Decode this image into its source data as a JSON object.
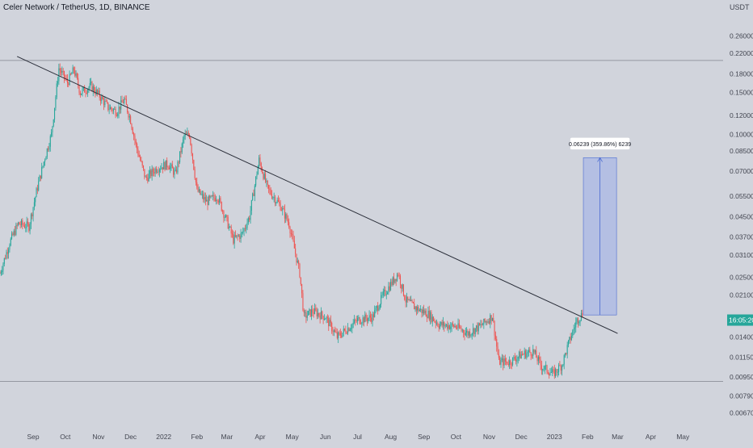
{
  "header": {
    "title": "Celer Network / TetherUS, 1D, BINANCE",
    "currency": "USDT"
  },
  "colors": {
    "background": "#d1d4dc",
    "up": "#26a69a",
    "down": "#ef5350",
    "trendline": "#2a2e39",
    "measure_fill": "#aab8e6",
    "measure_stroke": "#4a6ad0",
    "price_badge": "#26a69a",
    "hline": "#9598a1"
  },
  "chart_data": {
    "type": "candlestick",
    "symbol": "CELRUSDT",
    "interval": "1D",
    "exchange": "BINANCE",
    "x_range": [
      "2021-08-01",
      "2023-05-31"
    ],
    "y_scale": "log",
    "y_range": [
      0.0058,
      0.32
    ],
    "y_ticks": [
      0.26,
      0.22,
      0.18,
      0.15,
      0.12,
      0.1,
      0.085,
      0.07,
      0.055,
      0.045,
      0.037,
      0.031,
      0.025,
      0.021,
      0.014,
      0.0115,
      0.0095,
      0.0079,
      0.0067
    ],
    "y_tick_labels": [
      "0.26000",
      "0.22000",
      "0.18000",
      "0.15000",
      "0.12000",
      "0.10000",
      "0.08500",
      "0.07000",
      "0.05500",
      "0.04500",
      "0.03700",
      "0.03100",
      "0.02500",
      "0.02100",
      "0.01400",
      "0.01150",
      "0.00950",
      "0.00790",
      "0.00670"
    ],
    "x_ticks": [
      {
        "date": "2021-09-01",
        "label": "Sep"
      },
      {
        "date": "2021-10-01",
        "label": "Oct"
      },
      {
        "date": "2021-11-01",
        "label": "Nov"
      },
      {
        "date": "2021-12-01",
        "label": "Dec"
      },
      {
        "date": "2022-01-01",
        "label": "2022"
      },
      {
        "date": "2022-02-01",
        "label": "Feb"
      },
      {
        "date": "2022-03-01",
        "label": "Mar"
      },
      {
        "date": "2022-04-01",
        "label": "Apr"
      },
      {
        "date": "2022-05-01",
        "label": "May"
      },
      {
        "date": "2022-06-01",
        "label": "Jun"
      },
      {
        "date": "2022-07-01",
        "label": "Jul"
      },
      {
        "date": "2022-08-01",
        "label": "Aug"
      },
      {
        "date": "2022-09-01",
        "label": "Sep"
      },
      {
        "date": "2022-10-01",
        "label": "Oct"
      },
      {
        "date": "2022-11-01",
        "label": "Nov"
      },
      {
        "date": "2022-12-01",
        "label": "Dec"
      },
      {
        "date": "2023-01-01",
        "label": "2023"
      },
      {
        "date": "2023-02-01",
        "label": "Feb"
      },
      {
        "date": "2023-03-01",
        "label": "Mar"
      },
      {
        "date": "2023-04-01",
        "label": "Apr"
      },
      {
        "date": "2023-05-01",
        "label": "May"
      }
    ],
    "price_path": [
      [
        "2021-08-01",
        0.026
      ],
      [
        "2021-08-10",
        0.035
      ],
      [
        "2021-08-18",
        0.042
      ],
      [
        "2021-08-28",
        0.041
      ],
      [
        "2021-09-05",
        0.06
      ],
      [
        "2021-09-12",
        0.08
      ],
      [
        "2021-09-18",
        0.1
      ],
      [
        "2021-09-25",
        0.19
      ],
      [
        "2021-10-03",
        0.165
      ],
      [
        "2021-10-09",
        0.188
      ],
      [
        "2021-10-15",
        0.15
      ],
      [
        "2021-10-25",
        0.16
      ],
      [
        "2021-11-02",
        0.145
      ],
      [
        "2021-11-10",
        0.13
      ],
      [
        "2021-11-18",
        0.125
      ],
      [
        "2021-11-25",
        0.14
      ],
      [
        "2021-12-01",
        0.115
      ],
      [
        "2021-12-06",
        0.09
      ],
      [
        "2021-12-15",
        0.065
      ],
      [
        "2021-12-25",
        0.072
      ],
      [
        "2022-01-05",
        0.075
      ],
      [
        "2022-01-12",
        0.068
      ],
      [
        "2022-01-20",
        0.098
      ],
      [
        "2022-01-25",
        0.1
      ],
      [
        "2022-02-01",
        0.058
      ],
      [
        "2022-02-10",
        0.052
      ],
      [
        "2022-02-20",
        0.055
      ],
      [
        "2022-03-01",
        0.043
      ],
      [
        "2022-03-07",
        0.036
      ],
      [
        "2022-03-15",
        0.038
      ],
      [
        "2022-03-22",
        0.045
      ],
      [
        "2022-03-31",
        0.078
      ],
      [
        "2022-04-08",
        0.059
      ],
      [
        "2022-04-20",
        0.05
      ],
      [
        "2022-04-28",
        0.042
      ],
      [
        "2022-05-08",
        0.026
      ],
      [
        "2022-05-12",
        0.017
      ],
      [
        "2022-05-20",
        0.018
      ],
      [
        "2022-06-01",
        0.017
      ],
      [
        "2022-06-12",
        0.014
      ],
      [
        "2022-06-20",
        0.015
      ],
      [
        "2022-07-01",
        0.0165
      ],
      [
        "2022-07-15",
        0.017
      ],
      [
        "2022-07-25",
        0.021
      ],
      [
        "2022-08-08",
        0.026
      ],
      [
        "2022-08-15",
        0.02
      ],
      [
        "2022-08-25",
        0.0185
      ],
      [
        "2022-09-05",
        0.0175
      ],
      [
        "2022-09-15",
        0.0158
      ],
      [
        "2022-10-01",
        0.0155
      ],
      [
        "2022-10-12",
        0.0145
      ],
      [
        "2022-10-25",
        0.0157
      ],
      [
        "2022-11-04",
        0.0172
      ],
      [
        "2022-11-10",
        0.011
      ],
      [
        "2022-11-20",
        0.011
      ],
      [
        "2022-12-01",
        0.0118
      ],
      [
        "2022-12-12",
        0.0122
      ],
      [
        "2022-12-20",
        0.0105
      ],
      [
        "2022-12-31",
        0.0098
      ],
      [
        "2023-01-08",
        0.0107
      ],
      [
        "2023-01-15",
        0.0135
      ],
      [
        "2023-01-22",
        0.0165
      ],
      [
        "2023-01-27",
        0.0175
      ]
    ],
    "trendline": {
      "from": [
        "2021-08-17",
        0.213
      ],
      "to": [
        "2023-03-01",
        0.0145
      ]
    },
    "horizontal_lines": [
      0.205,
      0.0091
    ],
    "measure": {
      "label": "0.06239 (359.86%) 6239",
      "from_date": "2023-01-28",
      "to_date": "2023-02-28",
      "low": 0.01734,
      "high": 0.07973
    },
    "current_price_label": "16:05:20",
    "current_price": 0.0165
  }
}
